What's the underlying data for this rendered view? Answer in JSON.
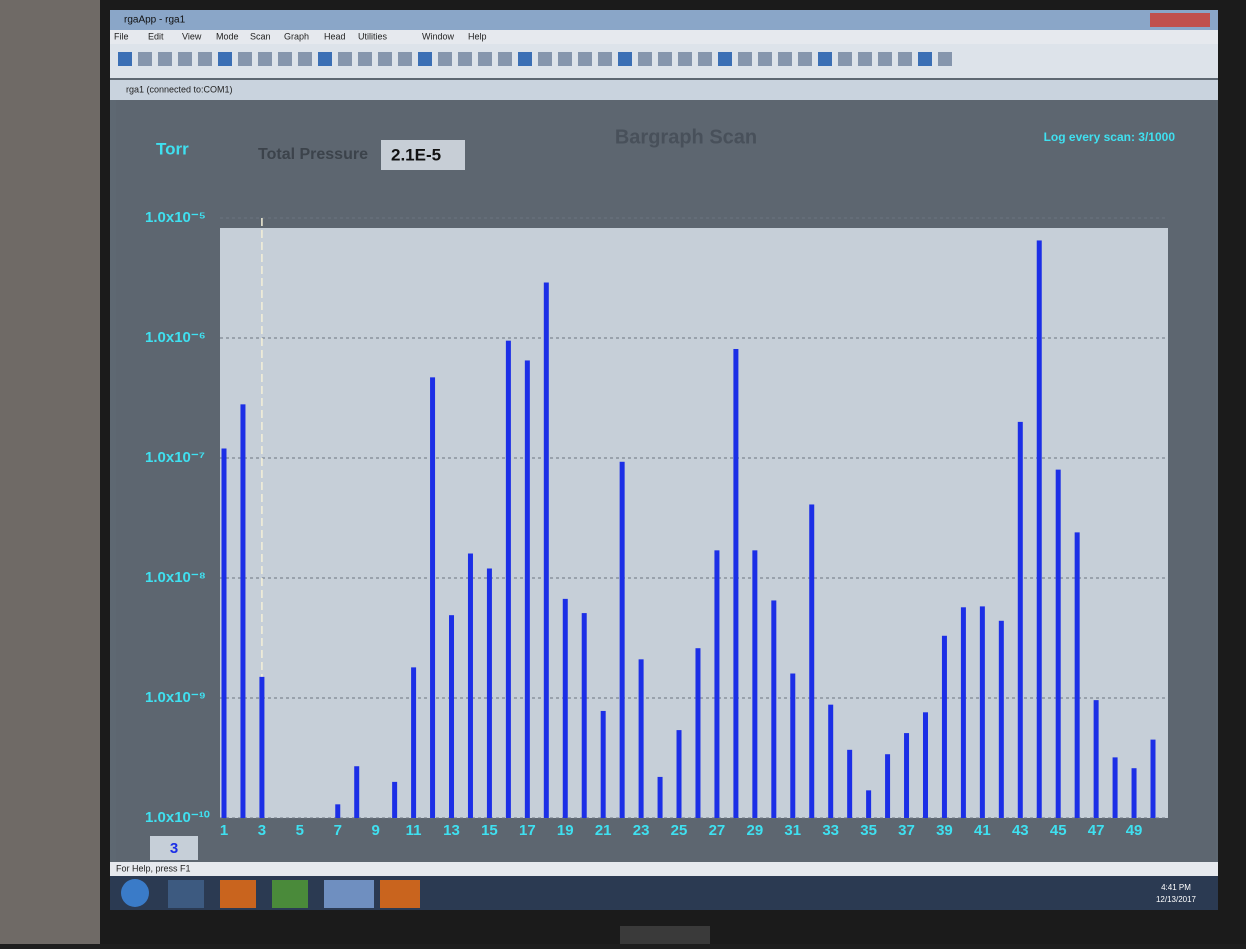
{
  "window": {
    "title": "rgaApp - rga1",
    "menu": [
      "File",
      "Edit",
      "View",
      "Mode",
      "Scan",
      "Graph",
      "Head",
      "Utilities",
      "Window",
      "Help"
    ],
    "document_title": "rga1 (connected to:COM1)",
    "status": "For Help, press F1"
  },
  "taskbar": {
    "time": "4:41 PM",
    "date": "12/13/2017"
  },
  "chart_data": {
    "type": "bar",
    "title": "Bargraph Scan",
    "y_label": "Torr",
    "total_pressure_label": "Total Pressure",
    "total_pressure": "2.1E-5",
    "log_note": "Log every scan: 3/1000",
    "selected_mass": 3,
    "x": [
      1,
      2,
      3,
      4,
      5,
      6,
      7,
      8,
      9,
      10,
      11,
      12,
      13,
      14,
      15,
      16,
      17,
      18,
      19,
      20,
      21,
      22,
      23,
      24,
      25,
      26,
      27,
      28,
      29,
      30,
      31,
      32,
      33,
      34,
      35,
      36,
      37,
      38,
      39,
      40,
      41,
      42,
      43,
      44,
      45,
      46,
      47,
      48,
      49,
      50
    ],
    "values": [
      1.2e-07,
      2.8e-07,
      1.5e-09,
      null,
      null,
      null,
      1.3e-10,
      2.7e-10,
      null,
      2e-10,
      1.8e-09,
      4.7e-07,
      4.9e-09,
      1.6e-08,
      1.2e-08,
      9.5e-07,
      6.5e-07,
      2.9e-06,
      6.7e-09,
      5.1e-09,
      7.8e-10,
      9.3e-08,
      2.1e-09,
      2.2e-10,
      5.4e-10,
      2.6e-09,
      1.7e-08,
      8.1e-07,
      1.7e-08,
      6.5e-09,
      1.6e-09,
      4.1e-08,
      8.8e-10,
      3.7e-10,
      1.7e-10,
      3.4e-10,
      5.1e-10,
      7.6e-10,
      3.3e-09,
      5.7e-09,
      5.8e-09,
      4.4e-09,
      2e-07,
      6.5e-06,
      8e-08,
      2.4e-08,
      9.6e-10,
      3.2e-10,
      2.6e-10,
      4.5e-10
    ],
    "color": "#1c2fe6",
    "xlim": [
      1,
      50
    ],
    "xticks": [
      1,
      3,
      5,
      7,
      9,
      11,
      13,
      15,
      17,
      19,
      21,
      23,
      25,
      27,
      29,
      31,
      33,
      35,
      37,
      39,
      41,
      43,
      45,
      47,
      49
    ],
    "ylim": [
      1e-10,
      1e-05
    ],
    "yticks": [
      {
        "value": 1e-10,
        "label": "1.0x10⁻¹⁰"
      },
      {
        "value": 1e-09,
        "label": "1.0x10⁻⁹"
      },
      {
        "value": 1e-08,
        "label": "1.0x10⁻⁸"
      },
      {
        "value": 1e-07,
        "label": "1.0x10⁻⁷"
      },
      {
        "value": 1e-06,
        "label": "1.0x10⁻⁶"
      },
      {
        "value": 1e-05,
        "label": "1.0x10⁻⁵"
      }
    ],
    "log_scale": true,
    "grid": true
  }
}
